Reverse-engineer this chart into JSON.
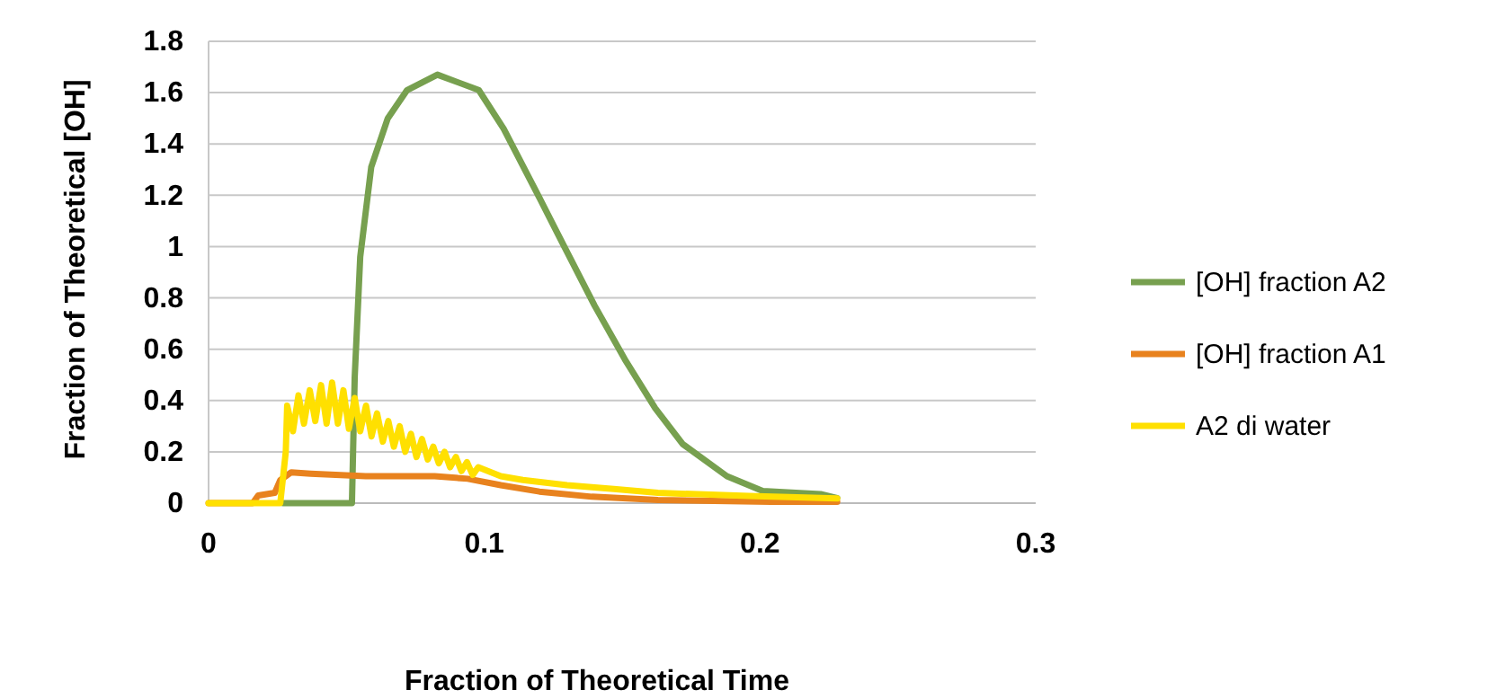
{
  "chart_data": {
    "type": "line",
    "xlabel": "Fraction of Theoretical Time",
    "ylabel": "Fraction of Theoretical [OH]",
    "xlim": [
      0,
      0.3
    ],
    "xticks": [
      0,
      0.1,
      0.2,
      0.3
    ],
    "ylim": [
      0,
      1.8
    ],
    "yticks": [
      0,
      0.2,
      0.4,
      0.6,
      0.8,
      1,
      1.2,
      1.4,
      1.6,
      1.8
    ],
    "grid": "y",
    "legend": "right",
    "marker": "none",
    "line_style": "solid",
    "series": [
      {
        "name": "[OH] fraction A2",
        "color": "#77a04f",
        "x": [
          0.027,
          0.052,
          0.053,
          0.055,
          0.059,
          0.065,
          0.072,
          0.083,
          0.098,
          0.107,
          0.12,
          0.129,
          0.14,
          0.151,
          0.162,
          0.172,
          0.188,
          0.201,
          0.222,
          0.228
        ],
        "values": [
          0,
          0,
          0.49,
          0.96,
          1.31,
          1.5,
          1.61,
          1.67,
          1.61,
          1.46,
          1.19,
          1,
          0.77,
          0.56,
          0.37,
          0.23,
          0.105,
          0.047,
          0.035,
          0.02
        ]
      },
      {
        "name": "[OH] fraction A1",
        "color": "#e8821e",
        "x": [
          0,
          0.016,
          0.018,
          0.024,
          0.026,
          0.03,
          0.037,
          0.057,
          0.082,
          0.094,
          0.106,
          0.12,
          0.139,
          0.163,
          0.204,
          0.228
        ],
        "values": [
          0,
          0,
          0.03,
          0.04,
          0.09,
          0.12,
          0.115,
          0.105,
          0.105,
          0.095,
          0.07,
          0.045,
          0.025,
          0.012,
          0.005,
          0.005
        ]
      },
      {
        "name": "A2 di water",
        "color": "#ffe000",
        "x": [
          0,
          0.026,
          0.028,
          0.0285,
          0.0306,
          0.0326,
          0.0346,
          0.0367,
          0.0387,
          0.0408,
          0.0428,
          0.0448,
          0.0469,
          0.0489,
          0.0509,
          0.053,
          0.055,
          0.0571,
          0.0591,
          0.0611,
          0.0632,
          0.0652,
          0.0672,
          0.0693,
          0.0713,
          0.0734,
          0.0754,
          0.0774,
          0.0795,
          0.0815,
          0.0835,
          0.0856,
          0.0876,
          0.0897,
          0.0917,
          0.0937,
          0.0958,
          0.0978,
          0.106,
          0.114,
          0.13,
          0.147,
          0.163,
          0.196,
          0.228
        ],
        "values": [
          0,
          0,
          0.2,
          0.38,
          0.28,
          0.42,
          0.31,
          0.44,
          0.32,
          0.46,
          0.31,
          0.47,
          0.31,
          0.44,
          0.29,
          0.41,
          0.28,
          0.38,
          0.26,
          0.35,
          0.24,
          0.32,
          0.22,
          0.3,
          0.2,
          0.27,
          0.18,
          0.25,
          0.17,
          0.22,
          0.155,
          0.2,
          0.14,
          0.18,
          0.125,
          0.16,
          0.11,
          0.14,
          0.105,
          0.09,
          0.07,
          0.055,
          0.04,
          0.028,
          0.018
        ]
      }
    ]
  }
}
